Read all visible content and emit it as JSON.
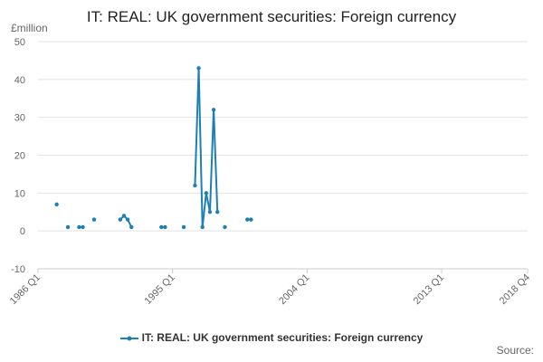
{
  "chart_data": {
    "type": "line",
    "title": "IT: REAL: UK government securities: Foreign currency",
    "y_unit_label": "£million",
    "source_label": "Source:",
    "ylim": [
      -10,
      50
    ],
    "y_ticks": [
      -10,
      0,
      10,
      20,
      30,
      40,
      50
    ],
    "x_ticks": [
      "1986 Q1",
      "1995 Q1",
      "2004 Q1",
      "2013 Q1",
      "2018 Q4"
    ],
    "xlim_quarters": [
      "1986 Q1",
      "2018 Q4"
    ],
    "grid": true,
    "legend_position": "bottom",
    "series": [
      {
        "name": "IT: REAL: UK government securities: Foreign currency",
        "color": "#1d7fb3",
        "points": [
          {
            "x": "1987 Q2",
            "y": 7
          },
          {
            "x": "1988 Q1",
            "y": 1
          },
          {
            "x": "1988 Q4",
            "y": 1
          },
          {
            "x": "1989 Q1",
            "y": 1
          },
          {
            "x": "1989 Q4",
            "y": 3
          },
          {
            "x": "1991 Q3",
            "y": 3
          },
          {
            "x": "1991 Q4",
            "y": 4
          },
          {
            "x": "1992 Q1",
            "y": 3
          },
          {
            "x": "1992 Q2",
            "y": 1
          },
          {
            "x": "1994 Q2",
            "y": 1
          },
          {
            "x": "1994 Q3",
            "y": 1
          },
          {
            "x": "1995 Q4",
            "y": 1
          },
          {
            "x": "1996 Q3",
            "y": 12
          },
          {
            "x": "1996 Q4",
            "y": 43
          },
          {
            "x": "1997 Q1",
            "y": 1
          },
          {
            "x": "1997 Q2",
            "y": 10
          },
          {
            "x": "1997 Q3",
            "y": 5
          },
          {
            "x": "1997 Q4",
            "y": 32
          },
          {
            "x": "1998 Q1",
            "y": 5
          },
          {
            "x": "1998 Q3",
            "y": 1
          },
          {
            "x": "2000 Q1",
            "y": 3
          },
          {
            "x": "2000 Q2",
            "y": 3
          }
        ]
      }
    ]
  }
}
